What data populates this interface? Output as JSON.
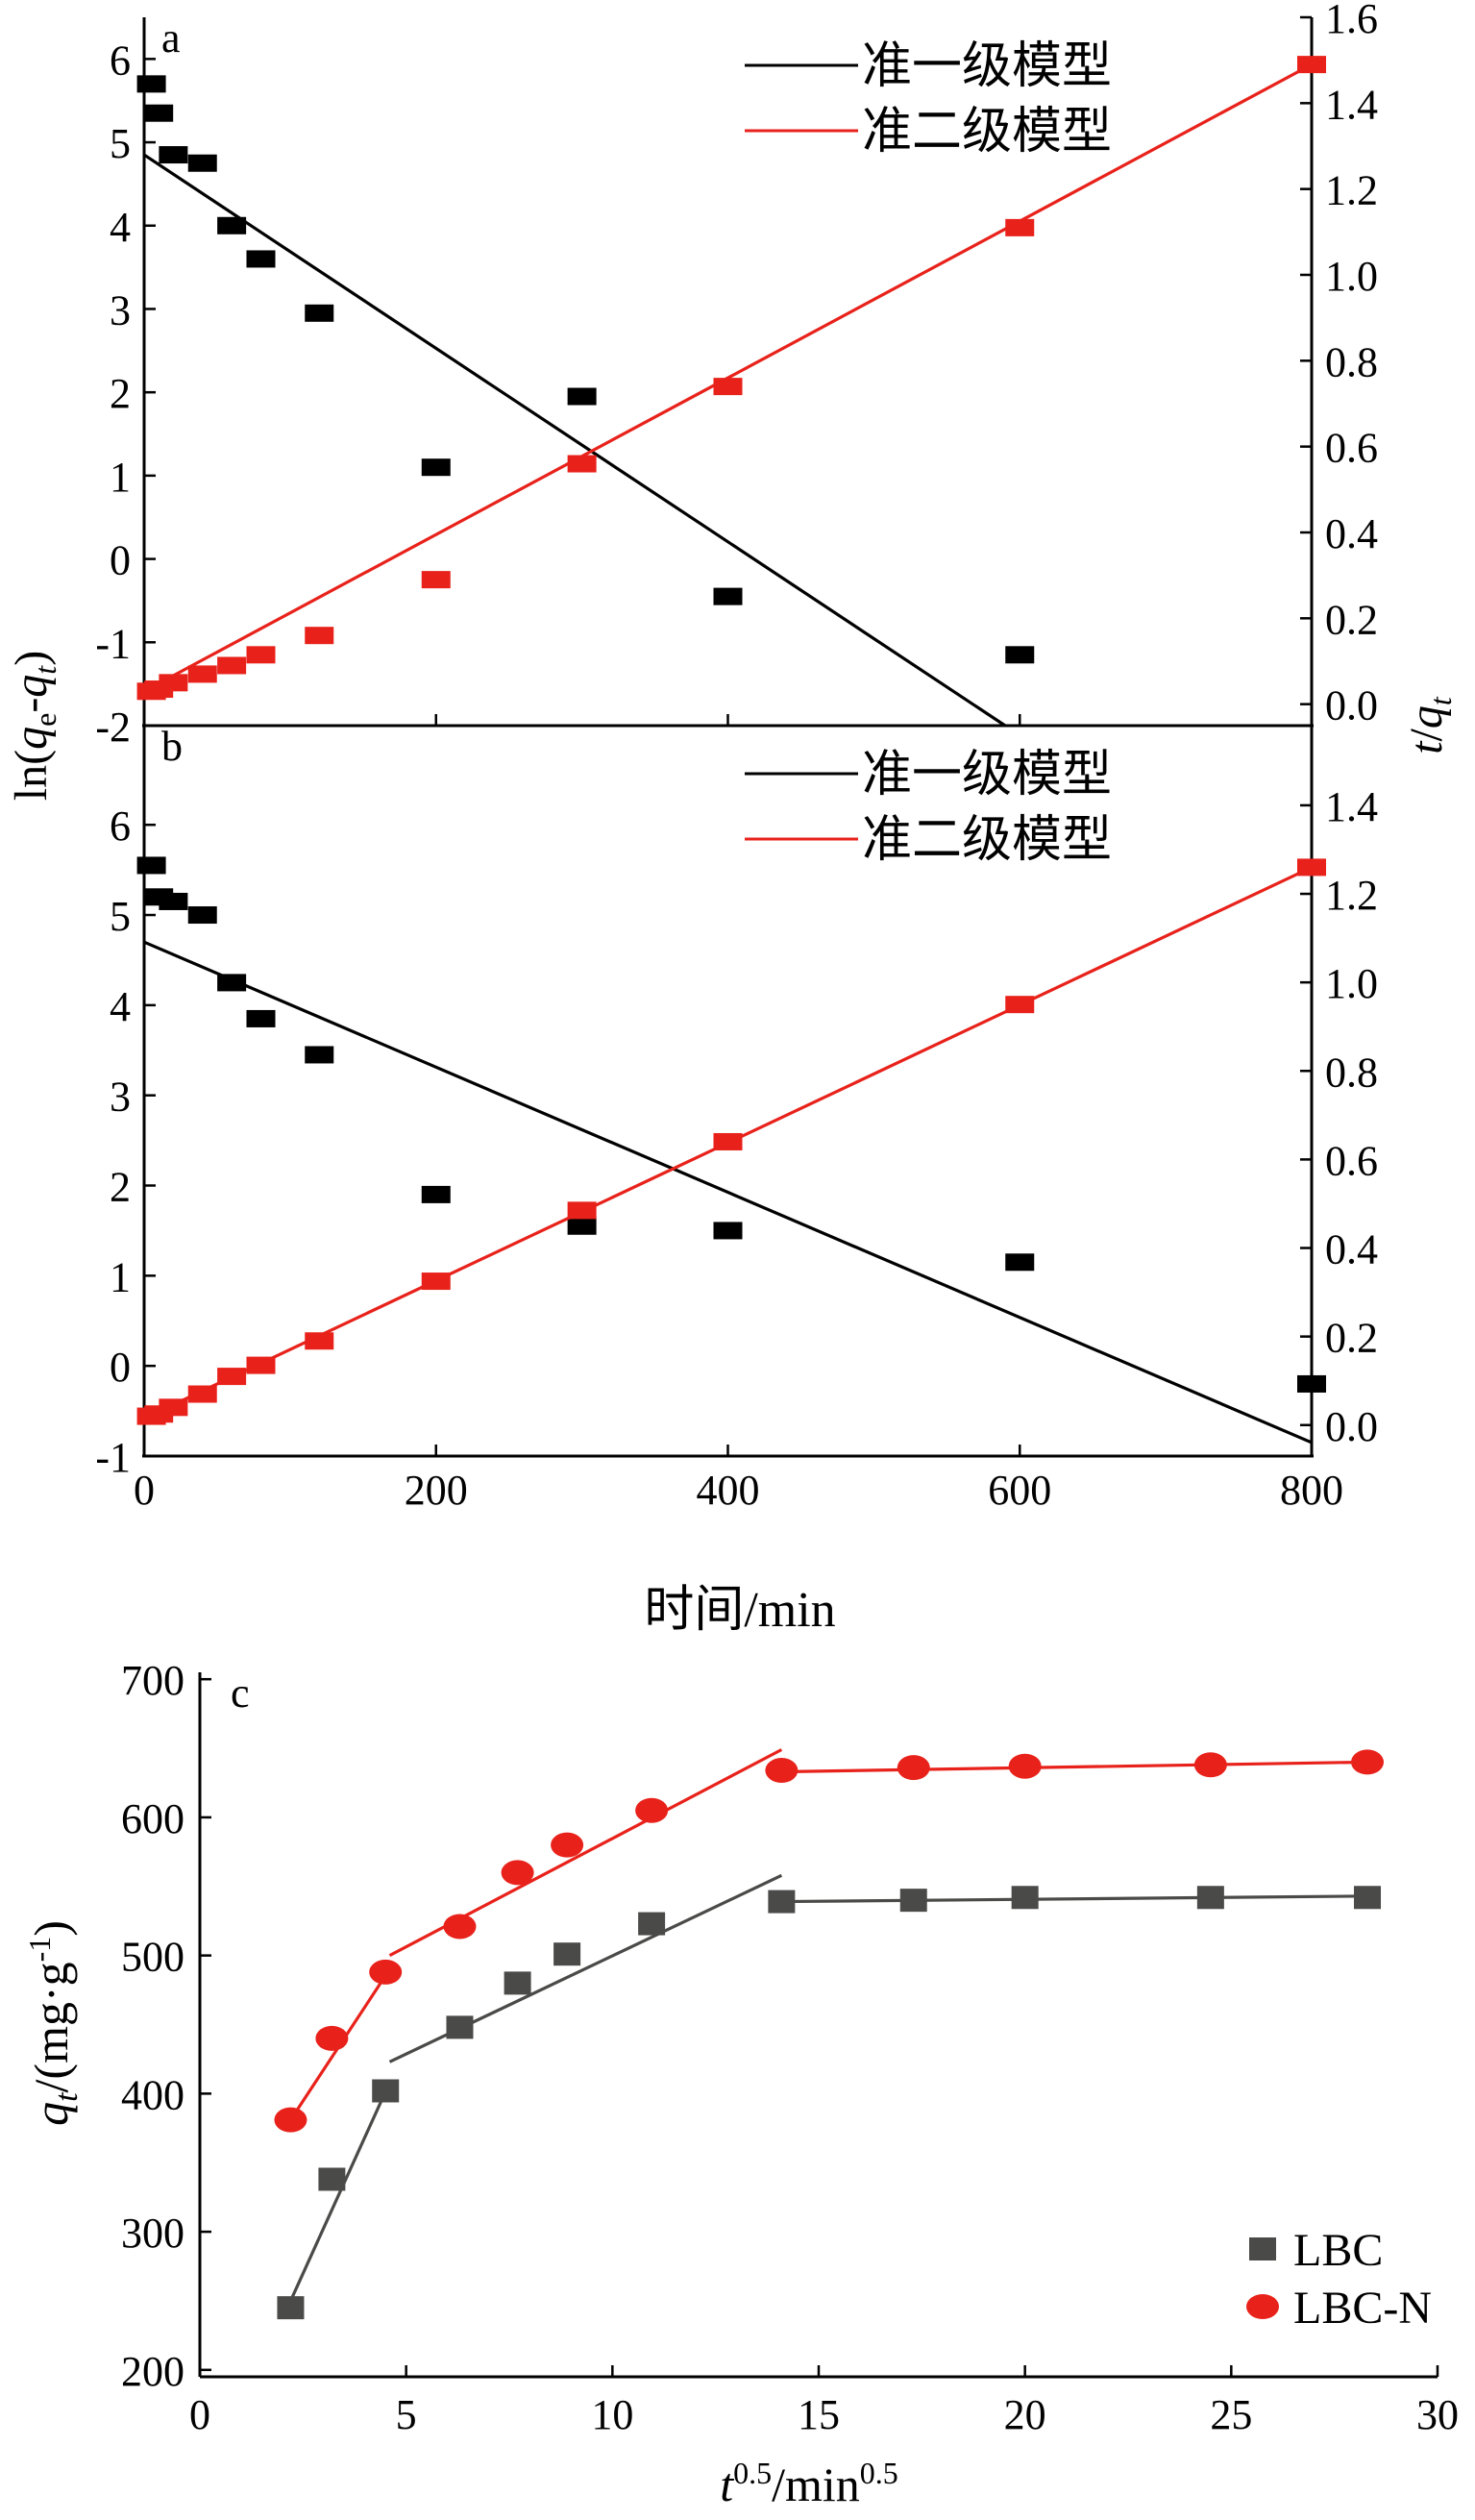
{
  "chart_data": [
    {
      "panel": "a",
      "type": "scatter",
      "xlim": [
        0,
        800
      ],
      "x_ticks": [],
      "y_left": {
        "label_parts": [
          "ln(",
          "q",
          "e",
          "-",
          "q",
          "t",
          ")"
        ],
        "lim": [
          -2,
          6.5
        ],
        "ticks": [
          "-2",
          "-1",
          "0",
          "1",
          "2",
          "3",
          "4",
          "5",
          "6"
        ]
      },
      "y_right": {
        "label_parts": [
          "t",
          "/",
          "q",
          "t"
        ],
        "lim": [
          -0.05,
          1.6
        ],
        "ticks": [
          "0.0",
          "0.2",
          "0.4",
          "0.6",
          "0.8",
          "1.0",
          "1.2",
          "1.4",
          "1.6"
        ]
      },
      "legend": {
        "entries": [
          {
            "name": "准一级模型",
            "color": "#000000"
          },
          {
            "name": "准二级模型",
            "color": "#e8221b"
          }
        ],
        "position": "top-right"
      },
      "series": [
        {
          "name": "准一级模型",
          "axis": "left",
          "color": "#000000",
          "x": [
            5,
            10,
            20,
            40,
            60,
            80,
            120,
            200,
            300,
            400,
            600
          ],
          "y": [
            5.7,
            5.35,
            4.85,
            4.75,
            4.0,
            3.6,
            2.95,
            1.1,
            1.95,
            -0.45,
            -1.15
          ],
          "fit": {
            "x": [
              0,
              590
            ],
            "y": [
              4.85,
              -2.0
            ]
          }
        },
        {
          "name": "准二级模型",
          "axis": "right",
          "color": "#e8221b",
          "x": [
            5,
            10,
            20,
            40,
            60,
            80,
            120,
            200,
            300,
            400,
            600,
            800
          ],
          "y": [
            0.03,
            0.035,
            0.05,
            0.07,
            0.09,
            0.115,
            0.16,
            0.29,
            0.56,
            0.74,
            1.11,
            1.49
          ],
          "fit": {
            "x": [
              0,
              800
            ],
            "y": [
              0.03,
              1.49
            ]
          }
        }
      ]
    },
    {
      "panel": "b",
      "type": "scatter",
      "xlim": [
        0,
        800
      ],
      "xlabel": "时间/min",
      "x_ticks": [
        "0",
        "200",
        "400",
        "600",
        "800"
      ],
      "y_left": {
        "lim": [
          -1,
          7.1
        ],
        "ticks": [
          "-1",
          "0",
          "1",
          "2",
          "3",
          "4",
          "5",
          "6"
        ]
      },
      "y_right": {
        "lim": [
          -0.07,
          1.58
        ],
        "ticks": [
          "0.0",
          "0.2",
          "0.4",
          "0.6",
          "0.8",
          "1.0",
          "1.2",
          "1.4"
        ]
      },
      "legend": {
        "entries": [
          {
            "name": "准一级模型",
            "color": "#000000"
          },
          {
            "name": "准二级模型",
            "color": "#e8221b"
          }
        ],
        "position": "top-right"
      },
      "series": [
        {
          "name": "准一级模型",
          "axis": "left",
          "color": "#000000",
          "x": [
            5,
            10,
            20,
            40,
            60,
            80,
            120,
            200,
            300,
            400,
            600,
            800
          ],
          "y": [
            5.55,
            5.2,
            5.15,
            5.0,
            4.25,
            3.85,
            3.45,
            1.9,
            1.55,
            1.5,
            1.15,
            -0.2
          ],
          "fit": {
            "x": [
              0,
              800
            ],
            "y": [
              4.7,
              -0.85
            ]
          }
        },
        {
          "name": "准二级模型",
          "axis": "right",
          "color": "#e8221b",
          "x": [
            5,
            10,
            20,
            40,
            60,
            80,
            120,
            200,
            300,
            400,
            600,
            800
          ],
          "y": [
            0.02,
            0.025,
            0.04,
            0.07,
            0.11,
            0.135,
            0.19,
            0.325,
            0.485,
            0.64,
            0.95,
            1.26
          ],
          "fit": {
            "x": [
              0,
              800
            ],
            "y": [
              0.015,
              1.26
            ]
          }
        }
      ]
    },
    {
      "panel": "c",
      "type": "scatter",
      "xlim": [
        0,
        30
      ],
      "ylim": [
        195,
        705
      ],
      "x_ticks": [
        "0",
        "5",
        "10",
        "15",
        "20",
        "25",
        "30"
      ],
      "y_ticks": [
        "200",
        "300",
        "400",
        "500",
        "600",
        "700"
      ],
      "xlabel_parts": [
        "t",
        "0.5",
        "/min",
        "0.5"
      ],
      "ylabel_parts": [
        "q",
        "t",
        "/(mg·g",
        "-1",
        ")"
      ],
      "legend": {
        "entries": [
          {
            "name": "LBC",
            "color": "#4a4a48",
            "marker": "square"
          },
          {
            "name": "LBC-N",
            "color": "#e8221b",
            "marker": "circle"
          }
        ],
        "position": "bottom-right"
      },
      "series": [
        {
          "name": "LBC",
          "color": "#4a4a48",
          "marker": "square",
          "x": [
            2.2,
            3.2,
            4.5,
            6.3,
            7.7,
            8.9,
            10.95,
            14.1,
            17.3,
            20.0,
            24.5,
            28.3
          ],
          "y": [
            245,
            338,
            402,
            448,
            480,
            501,
            523,
            539,
            540,
            542,
            542,
            542
          ],
          "fits": [
            {
              "x": [
                2.2,
                4.6
              ],
              "y": [
                250,
                408
              ]
            },
            {
              "x": [
                4.6,
                14.1
              ],
              "y": [
                423,
                558
              ]
            },
            {
              "x": [
                14.1,
                28.3
              ],
              "y": [
                539,
                543
              ]
            }
          ]
        },
        {
          "name": "LBC-N",
          "color": "#e8221b",
          "marker": "circle",
          "x": [
            2.2,
            3.2,
            4.5,
            6.3,
            7.7,
            8.9,
            10.95,
            14.1,
            17.3,
            20.0,
            24.5,
            28.3
          ],
          "y": [
            381,
            440,
            488,
            521,
            560,
            580,
            605,
            634,
            636,
            637,
            638,
            640
          ],
          "fits": [
            {
              "x": [
                2.2,
                4.6
              ],
              "y": [
                381,
                490
              ]
            },
            {
              "x": [
                4.6,
                14.1
              ],
              "y": [
                500,
                649
              ]
            },
            {
              "x": [
                14.1,
                28.3
              ],
              "y": [
                633,
                640
              ]
            }
          ]
        }
      ]
    }
  ]
}
